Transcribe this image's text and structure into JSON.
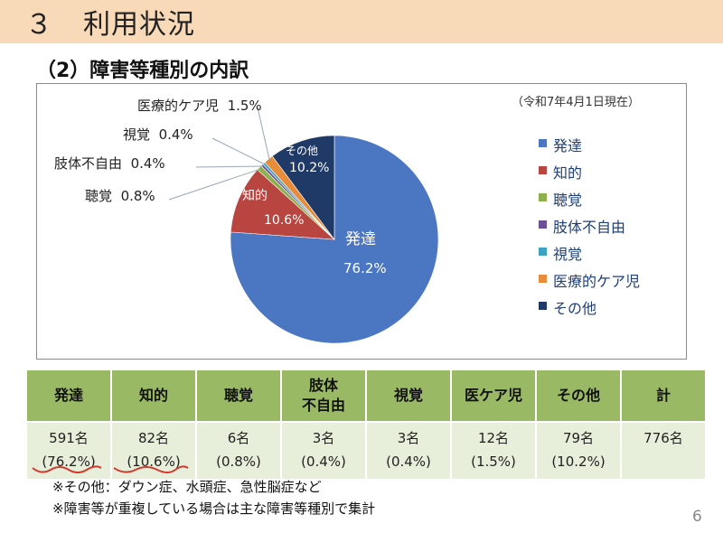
{
  "header": {
    "number": "３",
    "title": "利用状況"
  },
  "subtitle": "（2）障害等種別の内訳",
  "date_note": "（令和7年4月1日現在）",
  "chart_data": {
    "type": "pie",
    "title": "",
    "slices": [
      {
        "name": "発達",
        "value": 76.2,
        "label": "76.2%",
        "color": "#4a76c2"
      },
      {
        "name": "知的",
        "value": 10.6,
        "label": "10.6%",
        "color": "#b94541"
      },
      {
        "name": "聴覚",
        "value": 0.8,
        "label": "0.8%",
        "color": "#8db04d"
      },
      {
        "name": "肢体不自由",
        "value": 0.4,
        "label": "0.4%",
        "color": "#6f4f98"
      },
      {
        "name": "視覚",
        "value": 0.4,
        "label": "0.4%",
        "color": "#3ea3c0"
      },
      {
        "name": "医療的ケア児",
        "value": 1.5,
        "label": "1.5%",
        "color": "#e88c3a"
      },
      {
        "name": "その他",
        "value": 10.2,
        "label": "10.2%",
        "color": "#1f3a66"
      }
    ],
    "legend_position": "right"
  },
  "table": {
    "headers": [
      "発達",
      "知的",
      "聴覚",
      "肢体\n不自由",
      "視覚",
      "医ケア児",
      "その他",
      "計"
    ],
    "counts": [
      "591名",
      "82名",
      "6名",
      "3名",
      "3名",
      "12名",
      "79名",
      "776名"
    ],
    "percents": [
      "(76.2%)",
      "(10.6%)",
      "(0.8%)",
      "(0.4%)",
      "(0.4%)",
      "(1.5%)",
      "(10.2%)",
      ""
    ]
  },
  "notes": [
    "※その他：ダウン症、水頭症、急性脳症など",
    "※障害等が重複している場合は主な障害等種別で集計"
  ],
  "page_number": "6"
}
